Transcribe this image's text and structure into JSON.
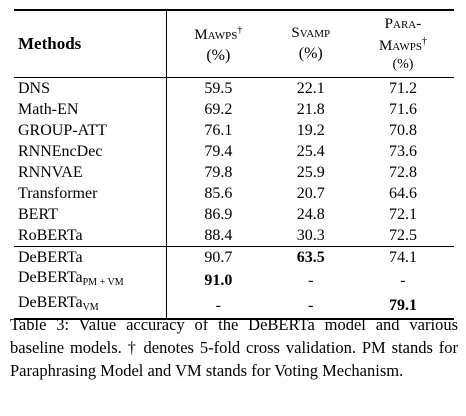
{
  "table": {
    "header": {
      "methods": "Methods",
      "col1_name": "Mawps",
      "col1_mark": "†",
      "col1_unit": "(%)",
      "col2_name": "Svamp",
      "col2_unit": "(%)",
      "col3_name_line1": "Para-",
      "col3_name_line2": "Mawps",
      "col3_mark": "†",
      "col3_unit": "(%)"
    },
    "baselines": [
      {
        "method": "DNS",
        "mawps": "59.5",
        "svamp": "22.1",
        "paramawps": "71.2"
      },
      {
        "method": "Math-EN",
        "mawps": "69.2",
        "svamp": "21.8",
        "paramawps": "71.6"
      },
      {
        "method": "GROUP-ATT",
        "mawps": "76.1",
        "svamp": "19.2",
        "paramawps": "70.8"
      },
      {
        "method": "RNNEncDec",
        "mawps": "79.4",
        "svamp": "25.4",
        "paramawps": "73.6"
      },
      {
        "method": "RNNVAE",
        "mawps": "79.8",
        "svamp": "25.9",
        "paramawps": "72.8"
      },
      {
        "method": "Transformer",
        "mawps": "85.6",
        "svamp": "20.7",
        "paramawps": "64.6"
      },
      {
        "method": "BERT",
        "mawps": "86.9",
        "svamp": "24.8",
        "paramawps": "72.1"
      },
      {
        "method": "RoBERTa",
        "mawps": "88.4",
        "svamp": "30.3",
        "paramawps": "72.5"
      }
    ],
    "ours": [
      {
        "method": "DeBERTa",
        "sub": "",
        "mawps": "90.7",
        "svamp": "63.5",
        "paramawps": "74.1"
      },
      {
        "method": "DeBERTa",
        "sub": "PM + VM",
        "mawps": "91.0",
        "svamp": "-",
        "paramawps": "-"
      },
      {
        "method": "DeBERTa",
        "sub": "VM",
        "mawps": "-",
        "svamp": "-",
        "paramawps": "79.1"
      }
    ]
  },
  "caption": "Table 3: Value accuracy of the DeBERTa model and various baseline models. † denotes 5-fold cross validation. PM stands for Paraphrasing Model and VM stands for Voting Mechanism."
}
